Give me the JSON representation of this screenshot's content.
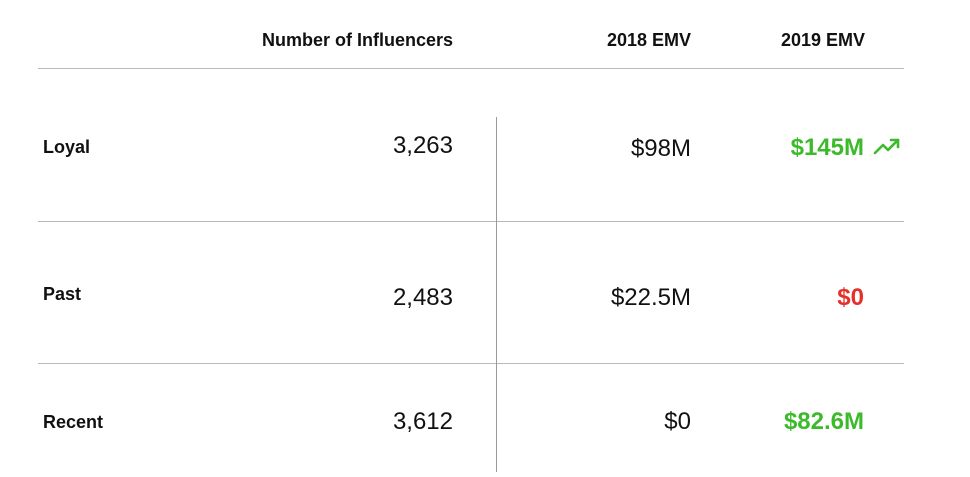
{
  "header": {
    "influencers": "Number of Influencers",
    "emv_2018": "2018 EMV",
    "emv_2019": "2019 EMV"
  },
  "rows": [
    {
      "label": "Loyal",
      "count": "3,263",
      "emv_2018": "$98M",
      "emv_2019": "$145M",
      "emv_2019_trend": "trending-up-icon"
    },
    {
      "label": "Past",
      "count": "2,483",
      "emv_2018": "$22.5M",
      "emv_2019": "$0"
    },
    {
      "label": "Recent",
      "count": "3,612",
      "emv_2018": "$0",
      "emv_2019": "$82.6M"
    }
  ],
  "colors": {
    "positive": "#3dba2c",
    "negative": "#e5302a",
    "text": "#111111",
    "divider": "#b8b8b8"
  }
}
